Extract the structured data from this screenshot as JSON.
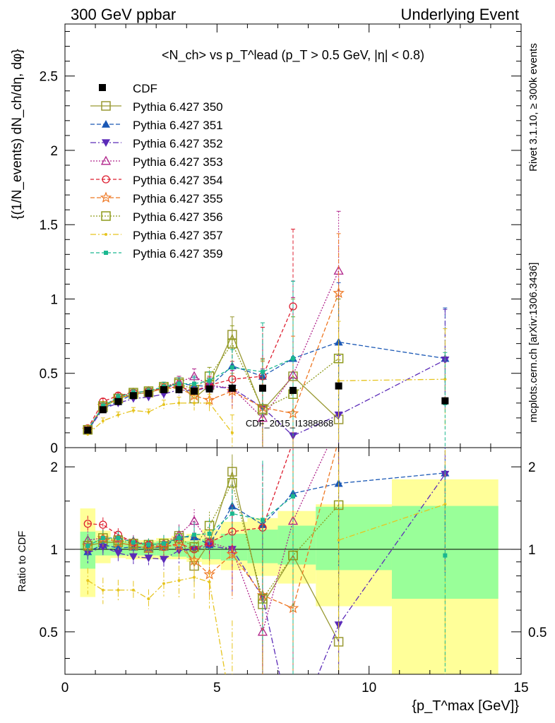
{
  "header": {
    "left": "300 GeV ppbar",
    "right": "Underlying Event"
  },
  "side_labels": {
    "rivet": "Rivet 3.1.10, ≥ 300k events",
    "mcplots": "mcplots.cern.ch [arXiv:1306.3436]"
  },
  "watermark": "CDF_2015_I1388868",
  "axes": {
    "ylabel_top": "{(1/N_events) dN_ch/dη, dφ}",
    "ylabel_bottom": "Ratio to CDF",
    "xlabel": "{p_T^max [GeV]}",
    "xticks": [
      "0",
      "5",
      "10",
      "15"
    ],
    "yticks_top": [
      "0",
      "0.5",
      "1",
      "1.5",
      "2",
      "2.5"
    ],
    "yticks_bottom": [
      "0.5",
      "1",
      "2"
    ]
  },
  "chart_data": {
    "type": "scatter",
    "title": "<N_ch> vs p_T^lead (p_T > 0.5 GeV, |η| < 0.8)",
    "xlim": [
      0,
      15
    ],
    "ylim_top": [
      0,
      2.85
    ],
    "ylim_ratio": [
      0.35,
      2.35
    ],
    "ratio_log_scale": true,
    "legend_placement": "top-left",
    "x": [
      0.75,
      1.25,
      1.75,
      2.25,
      2.75,
      3.25,
      3.75,
      4.25,
      4.75,
      5.5,
      6.5,
      7.5,
      9.0,
      12.5
    ],
    "reference": {
      "name": "CDF",
      "values": [
        0.117,
        0.255,
        0.31,
        0.35,
        0.365,
        0.39,
        0.39,
        0.38,
        0.395,
        0.4,
        0.4,
        0.385,
        0.415,
        0.315
      ],
      "band_inner": [
        [
          0.85,
          1.16
        ],
        [
          0.95,
          1.08
        ],
        [
          0.95,
          1.07
        ],
        [
          0.95,
          1.06
        ],
        [
          0.95,
          1.06
        ],
        [
          0.95,
          1.07
        ],
        [
          0.94,
          1.07
        ],
        [
          0.93,
          1.07
        ],
        [
          0.92,
          1.09
        ],
        [
          0.91,
          1.14
        ],
        [
          0.89,
          1.18
        ],
        [
          0.88,
          1.22
        ],
        [
          0.84,
          1.43
        ],
        [
          0.66,
          1.44
        ]
      ],
      "band_outer": [
        [
          0.67,
          1.41
        ],
        [
          0.89,
          1.17
        ],
        [
          0.93,
          1.1
        ],
        [
          0.92,
          1.08
        ],
        [
          0.92,
          1.08
        ],
        [
          0.92,
          1.1
        ],
        [
          0.92,
          1.12
        ],
        [
          0.9,
          1.14
        ],
        [
          0.88,
          1.18
        ],
        [
          0.84,
          1.26
        ],
        [
          0.8,
          1.3
        ],
        [
          0.75,
          1.38
        ],
        [
          0.62,
          1.46
        ],
        [
          0.35,
          1.8
        ]
      ]
    },
    "series": [
      {
        "name": "Pythia 6.427 350",
        "color": "#999933",
        "marker": "square-open",
        "dash": "",
        "values": [
          0.12,
          0.27,
          0.33,
          0.36,
          0.37,
          0.4,
          0.44,
          0.33,
          0.42,
          0.76,
          0.25,
          0.48,
          0.19,
          null
        ]
      },
      {
        "name": "Pythia 6.427 351",
        "color": "#1a58b5",
        "marker": "triangle-up",
        "dash": "6,3",
        "values": [
          0.115,
          0.265,
          0.31,
          0.36,
          0.37,
          0.4,
          0.43,
          0.42,
          0.41,
          0.55,
          0.48,
          0.6,
          0.71,
          0.6
        ]
      },
      {
        "name": "Pythia 6.427 352",
        "color": "#5b2ab8",
        "marker": "triangle-down",
        "dash": "8,3,2,3",
        "values": [
          0.115,
          0.26,
          0.3,
          0.33,
          0.34,
          0.36,
          0.39,
          0.38,
          0.41,
          0.4,
          0.27,
          0.08,
          0.22,
          0.59
        ]
      },
      {
        "name": "Pythia 6.427 353",
        "color": "#b0238a",
        "marker": "triangle-up-open",
        "dash": "2,2",
        "values": [
          0.12,
          0.28,
          0.34,
          0.37,
          0.38,
          0.41,
          0.44,
          0.48,
          0.42,
          0.4,
          0.2,
          0.49,
          1.19,
          null
        ]
      },
      {
        "name": "Pythia 6.427 354",
        "color": "#dd1e2f",
        "marker": "circle-open",
        "dash": "5,3",
        "values": [
          0.13,
          0.31,
          0.35,
          0.37,
          0.38,
          0.4,
          0.41,
          0.38,
          0.42,
          0.46,
          0.48,
          0.95,
          null,
          null
        ]
      },
      {
        "name": "Pythia 6.427 355",
        "color": "#ee7722",
        "marker": "star-open",
        "dash": "6,3",
        "values": [
          0.12,
          0.28,
          0.33,
          0.36,
          0.37,
          0.4,
          0.4,
          0.35,
          0.32,
          0.38,
          0.27,
          0.23,
          1.04,
          null
        ]
      },
      {
        "name": "Pythia 6.427 356",
        "color": "#8e9a1b",
        "marker": "square-open",
        "dash": "2,2",
        "values": [
          0.12,
          0.28,
          0.33,
          0.37,
          0.38,
          0.41,
          0.43,
          0.39,
          0.48,
          0.7,
          0.26,
          0.36,
          0.6,
          null
        ]
      },
      {
        "name": "Pythia 6.427 357",
        "color": "#e6c41f",
        "marker": "dot",
        "dash": "8,3,2,3",
        "values": [
          0.09,
          0.18,
          0.22,
          0.25,
          0.24,
          0.29,
          0.3,
          0.3,
          0.3,
          0.1,
          null,
          null,
          0.45,
          0.46
        ]
      },
      {
        "name": "Pythia 6.427 359",
        "color": "#1bb890",
        "marker": "square-small",
        "dash": "5,3",
        "values": [
          0.12,
          0.28,
          0.34,
          0.37,
          0.38,
          0.41,
          0.43,
          0.43,
          0.45,
          0.54,
          0.51,
          0.6,
          null,
          0.3
        ]
      }
    ],
    "error_bars_top": [
      0.01,
      0.02,
      0.02,
      0.02,
      0.02,
      0.03,
      0.04,
      0.05,
      0.06,
      0.12,
      0.33,
      0.52,
      0.4,
      0.34
    ],
    "ratio_values": [
      [
        1.03,
        1.06,
        1.06,
        1.03,
        1.01,
        1.03,
        1.12,
        0.87,
        1.06,
        1.92,
        0.63,
        0.95,
        0.46,
        null
      ],
      [
        0.98,
        1.04,
        1.01,
        1.02,
        1.01,
        1.02,
        1.11,
        1.11,
        1.04,
        1.44,
        1.23,
        1.6,
        1.74,
        1.9
      ],
      [
        0.97,
        1.02,
        0.97,
        0.94,
        0.93,
        0.92,
        0.99,
        1.0,
        1.03,
        1.0,
        0.67,
        0.21,
        0.53,
        1.88
      ],
      [
        1.08,
        1.1,
        1.1,
        1.07,
        1.04,
        1.05,
        1.13,
        1.27,
        1.06,
        1.0,
        0.5,
        1.27,
        2.87,
        null
      ],
      [
        1.24,
        1.23,
        1.13,
        1.06,
        1.04,
        1.02,
        1.05,
        1.0,
        1.06,
        1.16,
        1.2,
        2.47,
        null,
        null
      ],
      [
        1.03,
        1.1,
        1.06,
        1.03,
        1.01,
        1.03,
        1.03,
        0.91,
        0.81,
        0.96,
        0.68,
        0.61,
        2.51,
        null
      ],
      [
        1.03,
        1.1,
        1.08,
        1.05,
        1.04,
        1.05,
        1.1,
        1.02,
        1.22,
        1.75,
        0.66,
        0.95,
        1.45,
        null
      ],
      [
        0.77,
        0.71,
        0.71,
        0.71,
        0.66,
        0.75,
        0.77,
        0.79,
        0.76,
        0.25,
        null,
        null,
        1.08,
        1.46
      ],
      [
        1.03,
        1.1,
        1.1,
        1.06,
        1.04,
        1.05,
        1.1,
        1.13,
        1.14,
        1.35,
        1.28,
        1.56,
        null,
        0.95
      ]
    ]
  }
}
